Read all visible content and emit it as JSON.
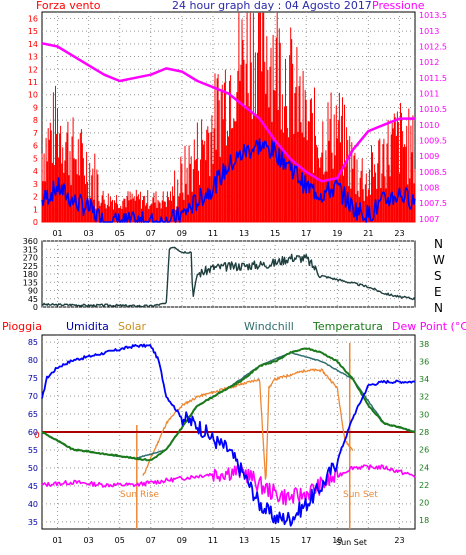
{
  "header": {
    "left_label": "Forza vento",
    "title": "24 hour graph day : 04 Agosto 2017",
    "right_label": "Pressione"
  },
  "compass": [
    "N",
    "W",
    "S",
    "E",
    "N"
  ],
  "bottom_header": {
    "pioggia": "Pioggia",
    "umidita": "Umidita",
    "solar": "Solar",
    "windchill": "Windchill",
    "temperatura": "Temperatura",
    "dewpoint": "Dew Point (°C)"
  },
  "annotations": {
    "sunrise": "Sun Rise",
    "sunset": "Sun Set",
    "rain_zero": "0",
    "sunset_tick": "Sun Set"
  },
  "colors": {
    "wind_gust": "#ff0000",
    "wind_avg": "#0000ff",
    "pressure": "#ff00ff",
    "direction": "#1f3f3f",
    "humidity": "#0000ff",
    "solar": "#ee8833",
    "temperature": "#1a7a1a",
    "windchill": "#2f6f6f",
    "dewpoint": "#ff00ff",
    "rain": "#aa0000",
    "left_axis": "#ff0000",
    "right_axis": "#ff00ff",
    "sun_marker": "#ee8833"
  },
  "chart_data": [
    {
      "type": "line",
      "title": "24 hour graph day : 04 Agosto 2017",
      "x_ticks": [
        "01",
        "03",
        "05",
        "07",
        "09",
        "11",
        "13",
        "15",
        "17",
        "19",
        "21",
        "23"
      ],
      "y_left": {
        "label": "Forza vento",
        "ticks": [
          0,
          1,
          2,
          3,
          4,
          5,
          6,
          7,
          8,
          9,
          10,
          11,
          12,
          13,
          14,
          15,
          16
        ],
        "ylim": [
          0,
          16.5
        ]
      },
      "y_right": {
        "label": "Pressione",
        "ticks": [
          "1007",
          "1007.5",
          "1008",
          "1008.5",
          "1009",
          "1009.5",
          "1010",
          "1010.5",
          "1011",
          "1011.5",
          "1012",
          "1012.5",
          "1013",
          "1013.5"
        ],
        "ylim": [
          1006.9,
          1013.6
        ]
      },
      "series": [
        {
          "name": "Pressione",
          "axis": "right",
          "x": [
            0,
            1,
            2,
            3,
            4,
            5,
            6,
            7,
            8,
            9,
            10,
            11,
            12,
            13,
            14,
            15,
            16,
            17,
            18,
            19,
            20,
            21,
            22,
            23,
            24
          ],
          "values": [
            1012.6,
            1012.5,
            1012.2,
            1011.9,
            1011.6,
            1011.4,
            1011.5,
            1011.6,
            1011.8,
            1011.7,
            1011.4,
            1011.2,
            1011.0,
            1010.6,
            1010.2,
            1009.5,
            1008.9,
            1008.5,
            1008.2,
            1008.3,
            1009.2,
            1009.8,
            1010.0,
            1010.2,
            1010.2
          ]
        },
        {
          "name": "Forza vento",
          "axis": "left",
          "x": [
            0,
            1,
            2,
            3,
            4,
            5,
            6,
            7,
            8,
            9,
            10,
            11,
            12,
            13,
            14,
            15,
            16,
            17,
            18,
            19,
            20,
            21,
            22,
            23,
            24
          ],
          "values": [
            3,
            5,
            3,
            2,
            0,
            0,
            0,
            0,
            0,
            1,
            3,
            5,
            8,
            10,
            11,
            10,
            8,
            5,
            4,
            5,
            2,
            1,
            3,
            4,
            3
          ]
        }
      ]
    },
    {
      "type": "line",
      "x_ticks": [
        "01",
        "03",
        "05",
        "07",
        "09",
        "11",
        "13",
        "15",
        "17",
        "19",
        "21",
        "23"
      ],
      "y": {
        "ticks": [
          0,
          45,
          90,
          135,
          180,
          225,
          270,
          315,
          360
        ],
        "ylim": [
          0,
          360
        ]
      },
      "series": [
        {
          "x": [
            0,
            0.5,
            1,
            2,
            3,
            4,
            5,
            6,
            7,
            8,
            8.2,
            8.5,
            9,
            9.6,
            9.7,
            10,
            10.5,
            11,
            12,
            13,
            14,
            15,
            16,
            17,
            18,
            19,
            20,
            21,
            22,
            23,
            24
          ],
          "values": [
            15,
            12,
            12,
            12,
            8,
            10,
            8,
            6,
            5,
            20,
            320,
            330,
            300,
            300,
            50,
            180,
            195,
            215,
            220,
            225,
            230,
            240,
            270,
            265,
            170,
            150,
            130,
            110,
            75,
            55,
            45
          ]
        }
      ]
    },
    {
      "type": "line",
      "x_ticks": [
        "01",
        "03",
        "05",
        "07",
        "09",
        "11",
        "13",
        "15",
        "17",
        "19",
        "21",
        "23"
      ],
      "y_left": {
        "label": "Umidita",
        "ticks": [
          35,
          40,
          45,
          50,
          55,
          60,
          65,
          70,
          75,
          80,
          85
        ],
        "ylim": [
          33,
          87
        ]
      },
      "y_right": {
        "label": "Temperatura",
        "ticks": [
          18,
          20,
          22,
          24,
          26,
          28,
          30,
          32,
          34,
          36,
          38
        ],
        "ylim": [
          17,
          39
        ]
      },
      "series": [
        {
          "name": "Umidita",
          "axis": "left",
          "x": [
            0,
            0.3,
            1,
            2,
            3,
            4,
            5,
            6,
            7,
            7.5,
            8,
            9,
            10,
            11,
            12,
            13,
            14,
            15,
            16,
            17,
            18,
            19,
            20,
            21,
            22,
            23,
            24
          ],
          "values": [
            69,
            75,
            78,
            80,
            81,
            82,
            83,
            84,
            84,
            80,
            70,
            64,
            62,
            58,
            55,
            48,
            40,
            36,
            36,
            40,
            45,
            52,
            64,
            73,
            74,
            74,
            74
          ]
        },
        {
          "name": "Temperatura",
          "axis": "right",
          "x": [
            0,
            1,
            2,
            3,
            4,
            5,
            6,
            7,
            8,
            9,
            10,
            11,
            12,
            13,
            14,
            15,
            16,
            17,
            18,
            19,
            20,
            21,
            22,
            23,
            24
          ],
          "values": [
            28,
            27,
            26,
            25.8,
            25.5,
            25.3,
            25,
            24.8,
            26,
            28.5,
            31,
            32,
            33,
            34,
            35.5,
            36,
            37,
            37.5,
            37,
            36,
            34,
            31,
            29,
            28.5,
            28
          ]
        },
        {
          "name": "Windchill",
          "axis": "right",
          "x": [
            0,
            2,
            4,
            6,
            8,
            10,
            12,
            14,
            16,
            18,
            20,
            22,
            24
          ],
          "values": [
            28,
            26,
            25.5,
            25,
            26,
            31,
            33,
            35.5,
            37,
            36,
            34,
            29,
            28
          ]
        },
        {
          "name": "Solar",
          "axis": "right",
          "x": [
            6.5,
            7,
            8,
            9,
            10,
            11,
            12,
            13,
            14,
            14.4,
            14.6,
            15,
            16,
            17,
            18,
            19,
            19.5,
            20
          ],
          "values": [
            23,
            25,
            29,
            31,
            32,
            32.5,
            33,
            33.5,
            34,
            22,
            33,
            34,
            34.5,
            35,
            35,
            33,
            27,
            26
          ]
        },
        {
          "name": "Dew Point (°C)",
          "axis": "right",
          "x": [
            0,
            2,
            4,
            6,
            8,
            10,
            12,
            13,
            14,
            15,
            16,
            17,
            18,
            19,
            20,
            21,
            22,
            23,
            24
          ],
          "values": [
            22,
            22.3,
            22,
            22,
            22.5,
            23,
            23.5,
            23.5,
            22,
            21,
            20.5,
            21,
            22,
            23,
            24,
            24,
            24,
            23.5,
            23
          ]
        },
        {
          "name": "Pioggia",
          "axis": "left",
          "x": [
            0,
            24
          ],
          "values": [
            60,
            60
          ]
        }
      ],
      "sunrise_hour": 6.1,
      "sunset_hour": 19.8
    }
  ]
}
